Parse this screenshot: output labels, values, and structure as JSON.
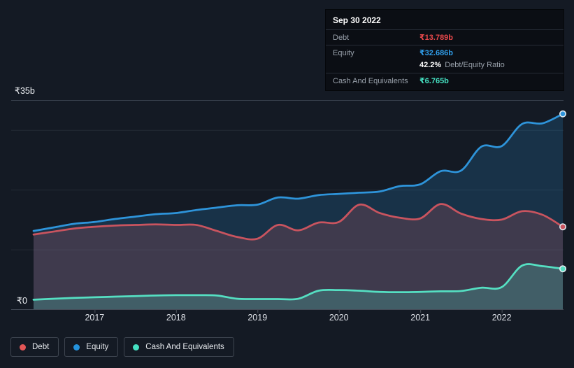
{
  "tooltip": {
    "date": "Sep 30 2022",
    "rows": {
      "debt_label": "Debt",
      "debt_value": "₹13.789b",
      "equity_label": "Equity",
      "equity_value": "₹32.686b",
      "ratio_value": "42.2%",
      "ratio_label": "Debt/Equity Ratio",
      "cash_label": "Cash And Equivalents",
      "cash_value": "₹6.765b"
    },
    "colors": {
      "debt": "#e8484b",
      "equity": "#2f9ce8",
      "cash": "#45e0c1"
    }
  },
  "y_axis": {
    "max_label": "₹35b",
    "min_label": "₹0"
  },
  "x_axis": {
    "years": [
      "2017",
      "2018",
      "2019",
      "2020",
      "2021",
      "2022"
    ]
  },
  "legend": {
    "items": [
      {
        "label": "Debt",
        "color": "#e25656"
      },
      {
        "label": "Equity",
        "color": "#2492dc"
      },
      {
        "label": "Cash And Equivalents",
        "color": "#45e0c2"
      }
    ]
  },
  "chart_data": {
    "type": "area",
    "unit": "₹ billions (INR)",
    "x_label_note": "quarterly, Mar 2016 to Sep 2022",
    "xlim": [
      2016.25,
      2022.75
    ],
    "ylim": [
      0,
      35
    ],
    "gridlines": [
      10,
      20,
      30
    ],
    "grid_top_value": 35,
    "x": [
      2016.25,
      2016.5,
      2016.75,
      2017,
      2017.25,
      2017.5,
      2017.75,
      2018,
      2018.25,
      2018.5,
      2018.75,
      2019,
      2019.25,
      2019.5,
      2019.75,
      2020,
      2020.25,
      2020.5,
      2020.75,
      2021,
      2021.25,
      2021.5,
      2021.75,
      2022,
      2022.25,
      2022.5,
      2022.75
    ],
    "series": [
      {
        "name": "Equity",
        "color": "#2e94da",
        "fill": "rgba(41,148,220,0.20)",
        "values": [
          13.1,
          13.7,
          14.3,
          14.6,
          15.1,
          15.5,
          15.9,
          16.1,
          16.6,
          17.0,
          17.4,
          17.5,
          18.7,
          18.5,
          19.1,
          19.3,
          19.5,
          19.7,
          20.6,
          20.9,
          23.1,
          23.2,
          27.2,
          27.3,
          31.0,
          31.1,
          32.686
        ]
      },
      {
        "name": "Debt",
        "color": "#c9545f",
        "fill": "rgba(222,92,98,0.20)",
        "values": [
          12.5,
          13.0,
          13.5,
          13.8,
          14.0,
          14.1,
          14.2,
          14.1,
          14.1,
          13.1,
          12.1,
          11.8,
          14.1,
          13.2,
          14.5,
          14.6,
          17.5,
          16.1,
          15.3,
          15.2,
          17.6,
          16.0,
          15.1,
          15.0,
          16.4,
          15.8,
          13.789
        ]
      },
      {
        "name": "Cash And Equivalents",
        "color": "#55dfc2",
        "fill": "rgba(72,222,194,0.22)",
        "values": [
          1.6,
          1.75,
          1.9,
          2.0,
          2.1,
          2.2,
          2.3,
          2.35,
          2.35,
          2.3,
          1.75,
          1.7,
          1.7,
          1.75,
          3.1,
          3.2,
          3.1,
          2.9,
          2.85,
          2.9,
          3.0,
          3.05,
          3.6,
          3.7,
          7.3,
          7.2,
          6.765
        ]
      }
    ]
  }
}
